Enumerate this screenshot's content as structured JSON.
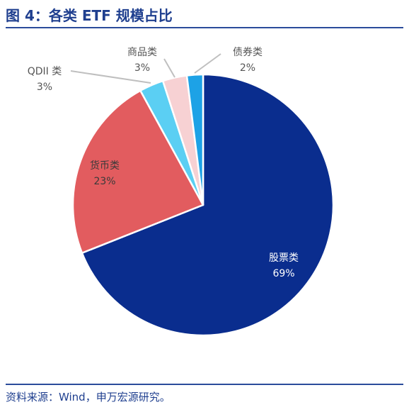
{
  "header": {
    "title": "图 4：各类 ETF 规模占比"
  },
  "footer": {
    "source": "资料来源：Wind，申万宏源研究。"
  },
  "chart_data": {
    "type": "pie",
    "title": "图 4：各类 ETF 规模占比",
    "slices": [
      {
        "label": "股票类",
        "pct_label": "69%",
        "value": 69,
        "color": "#0a2d8e",
        "text_color": "#ffffff"
      },
      {
        "label": "货币类",
        "pct_label": "23%",
        "value": 23,
        "color": "#e25c5f",
        "text_color": "#3a3a3a"
      },
      {
        "label": "QDII 类",
        "pct_label": "3%",
        "value": 3,
        "color": "#5bcff3",
        "text_color": "#555555"
      },
      {
        "label": "商品类",
        "pct_label": "3%",
        "value": 3,
        "color": "#f7d1d3",
        "text_color": "#555555"
      },
      {
        "label": "债券类",
        "pct_label": "2%",
        "value": 2,
        "color": "#1da2e6",
        "text_color": "#555555"
      }
    ],
    "legend": "none",
    "label_position": "inside for large slices, outside with leader lines for small slices"
  }
}
